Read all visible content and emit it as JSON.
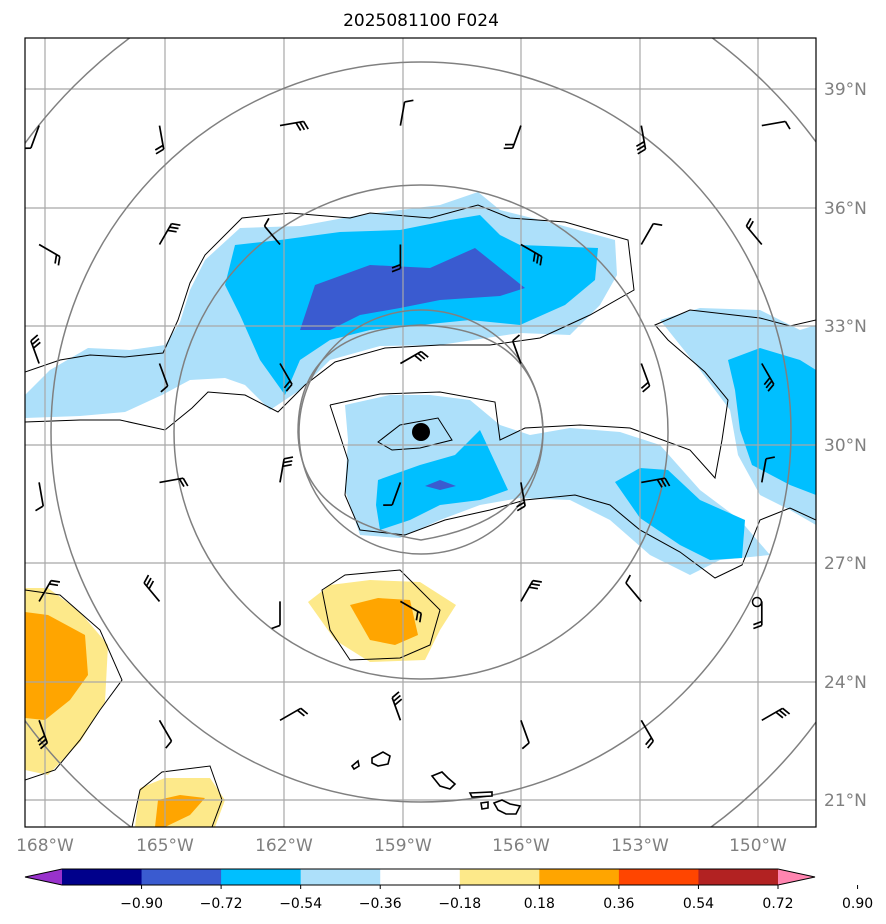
{
  "title": "2025081100 F024",
  "map": {
    "lon_range": [
      -168.4,
      -148.7
    ],
    "lat_range": [
      20.3,
      40.2
    ],
    "lon_ticks": [
      {
        "value": -168,
        "label": "168°W"
      },
      {
        "value": -165,
        "label": "165°W"
      },
      {
        "value": -162,
        "label": "162°W"
      },
      {
        "value": -159,
        "label": "159°W"
      },
      {
        "value": -156,
        "label": "156°W"
      },
      {
        "value": -153,
        "label": "153°W"
      },
      {
        "value": -150,
        "label": "150°W"
      }
    ],
    "lat_ticks": [
      {
        "value": 39,
        "label": "39°N"
      },
      {
        "value": 36,
        "label": "36°N"
      },
      {
        "value": 33,
        "label": "33°N"
      },
      {
        "value": 30,
        "label": "30°N"
      },
      {
        "value": 27,
        "label": "27°N"
      },
      {
        "value": 24,
        "label": "24°N"
      },
      {
        "value": 21,
        "label": "21°N"
      }
    ],
    "grid": true,
    "storm_center": {
      "lon": -158.5,
      "lat": 30.3
    },
    "small_marker": {
      "lon": -149.9,
      "lat": 26.0
    },
    "range_rings_deg": [
      3,
      6,
      9,
      12
    ],
    "coastline": "Hawaiian Islands (lower center)"
  },
  "colorbar": {
    "ticks": [
      "−0.90",
      "−0.72",
      "−0.54",
      "−0.36",
      "−0.18",
      "0.18",
      "0.36",
      "0.54",
      "0.72",
      "0.90"
    ],
    "colors": [
      "#9932cc",
      "#00008b",
      "#3a5bd0",
      "#00bfff",
      "#ade0fa",
      "#ffffff",
      "#fde98a",
      "#ffa500",
      "#ff4500",
      "#b22222",
      "#ff85b0"
    ],
    "extend": "both"
  },
  "shading": [
    {
      "color": "#ade0fa",
      "note": "northern band -0.36 to -0.18"
    },
    {
      "color": "#00bfff",
      "note": "northern band -0.54 to -0.36"
    },
    {
      "color": "#3a5bd0",
      "note": "northern core -0.72 to -0.54"
    },
    {
      "color": "#fde98a",
      "note": "southwest/south 0.18 to 0.36"
    },
    {
      "color": "#ffa500",
      "note": "0.36 to 0.54 cores"
    }
  ],
  "wind_barbs": {
    "lons": [
      -168,
      -165,
      -162,
      -159,
      -156,
      -153,
      -150
    ],
    "lats": [
      39,
      36,
      33,
      30,
      27,
      24
    ]
  }
}
